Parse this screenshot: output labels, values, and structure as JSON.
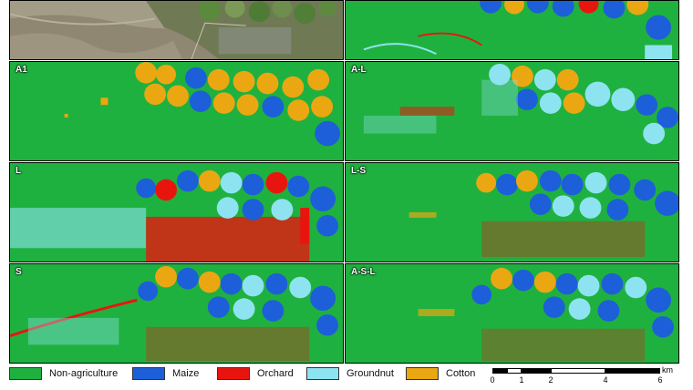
{
  "panels": {
    "a1": "A1",
    "al": "A-L",
    "l": "L",
    "ls": "L-S",
    "s": "S",
    "asl": "A-S-L"
  },
  "legend": [
    {
      "label": "Non-agriculture",
      "color": "#1fb13f"
    },
    {
      "label": "Maize",
      "color": "#1d5fd8"
    },
    {
      "label": "Orchard",
      "color": "#e8150f"
    },
    {
      "label": "Groundnut",
      "color": "#8ee3f0"
    },
    {
      "label": "Cotton",
      "color": "#eaa712"
    }
  ],
  "scalebar": {
    "unit": "km",
    "ticks": [
      "0",
      "1",
      "2",
      "4",
      "6"
    ]
  },
  "icons": {
    "north_arrow": "north-arrow-icon"
  }
}
